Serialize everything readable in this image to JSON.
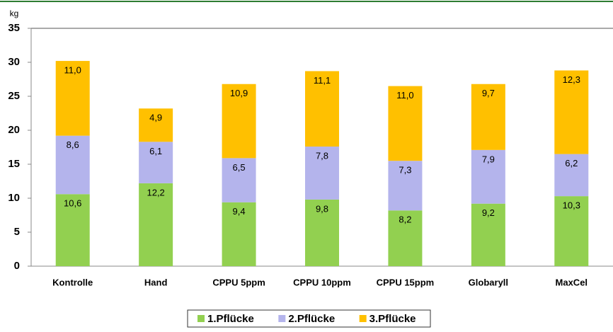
{
  "chart_data": {
    "type": "stacked_bar",
    "y_label": "kg",
    "categories": [
      "Kontrolle",
      "Hand",
      "CPPU 5ppm",
      "CPPU 10ppm",
      "CPPU 15ppm",
      "Globaryll",
      "MaxCel"
    ],
    "series": [
      {
        "name": "1.Pflücke",
        "color": "#92d050",
        "values": [
          10.6,
          12.2,
          9.4,
          9.8,
          8.2,
          9.2,
          10.3
        ],
        "value_labels": [
          "10,6",
          "12,2",
          "9,4",
          "9,8",
          "8,2",
          "9,2",
          "10,3"
        ]
      },
      {
        "name": "2.Pflücke",
        "color": "#b4b4ec",
        "values": [
          8.6,
          6.1,
          6.5,
          7.8,
          7.3,
          7.9,
          6.2
        ],
        "value_labels": [
          "8,6",
          "6,1",
          "6,5",
          "7,8",
          "7,3",
          "7,9",
          "6,2"
        ]
      },
      {
        "name": "3.Pflücke",
        "color": "#ffc000",
        "values": [
          11.0,
          4.9,
          10.9,
          11.1,
          11.0,
          9.7,
          12.3
        ],
        "value_labels": [
          "11,0",
          "4,9",
          "10,9",
          "11,1",
          "11,0",
          "9,7",
          "12,3"
        ]
      }
    ],
    "ylim": [
      0,
      35
    ],
    "yticks": [
      0,
      5,
      10,
      15,
      20,
      25,
      30,
      35
    ],
    "legend": "bottom"
  }
}
